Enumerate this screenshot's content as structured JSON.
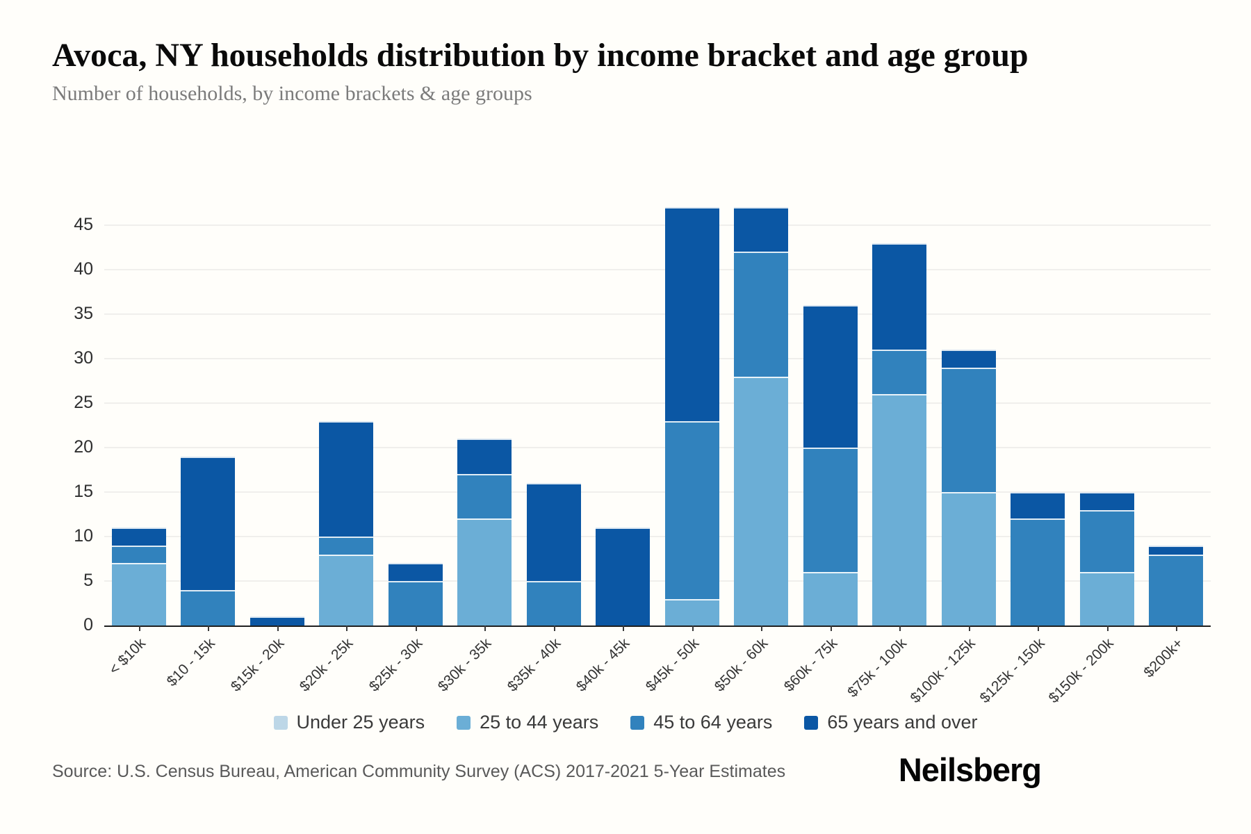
{
  "header": {
    "title": "Avoca, NY households distribution by income bracket and age group",
    "subtitle": "Number of households, by income brackets & age groups"
  },
  "chart_data": {
    "type": "bar",
    "stacked": true,
    "title": "Avoca, NY households distribution by income bracket and age group",
    "xlabel": "",
    "ylabel": "",
    "categories": [
      "< $10k",
      "$10 - 15k",
      "$15k - 20k",
      "$20k - 25k",
      "$25k - 30k",
      "$30k - 35k",
      "$35k - 40k",
      "$40k - 45k",
      "$45k - 50k",
      "$50k - 60k",
      "$60k - 75k",
      "$75k - 100k",
      "$100k - 125k",
      "$125k - 150k",
      "$150k - 200k",
      "$200k+"
    ],
    "series": [
      {
        "name": "Under 25 years",
        "color": "#bdd7e7",
        "values": [
          0,
          0,
          0,
          0,
          0,
          0,
          0,
          0,
          0,
          0,
          0,
          0,
          0,
          0,
          0,
          0
        ]
      },
      {
        "name": "25 to 44 years",
        "color": "#6baed6",
        "values": [
          7,
          0,
          0,
          8,
          0,
          12,
          0,
          0,
          3,
          28,
          6,
          26,
          15,
          0,
          6,
          0
        ]
      },
      {
        "name": "45 to 64 years",
        "color": "#3182bd",
        "values": [
          2,
          4,
          0,
          2,
          5,
          5,
          5,
          0,
          20,
          14,
          14,
          5,
          14,
          12,
          7,
          8
        ]
      },
      {
        "name": "65 years and over",
        "color": "#0b57a4",
        "values": [
          2,
          15,
          1,
          13,
          2,
          4,
          11,
          11,
          24,
          5,
          16,
          12,
          2,
          3,
          2,
          1
        ]
      }
    ],
    "totals": [
      11,
      19,
      1,
      23,
      7,
      21,
      16,
      11,
      47,
      47,
      36,
      43,
      31,
      15,
      15,
      9
    ],
    "yticks": [
      0,
      5,
      10,
      15,
      20,
      25,
      30,
      35,
      40,
      45
    ],
    "ylim": [
      0,
      47
    ],
    "grid": true,
    "legend_position": "bottom"
  },
  "footer": {
    "source": "Source: U.S. Census Bureau, American Community Survey (ACS) 2017-2021 5-Year Estimates",
    "brand": "Neilsberg"
  }
}
